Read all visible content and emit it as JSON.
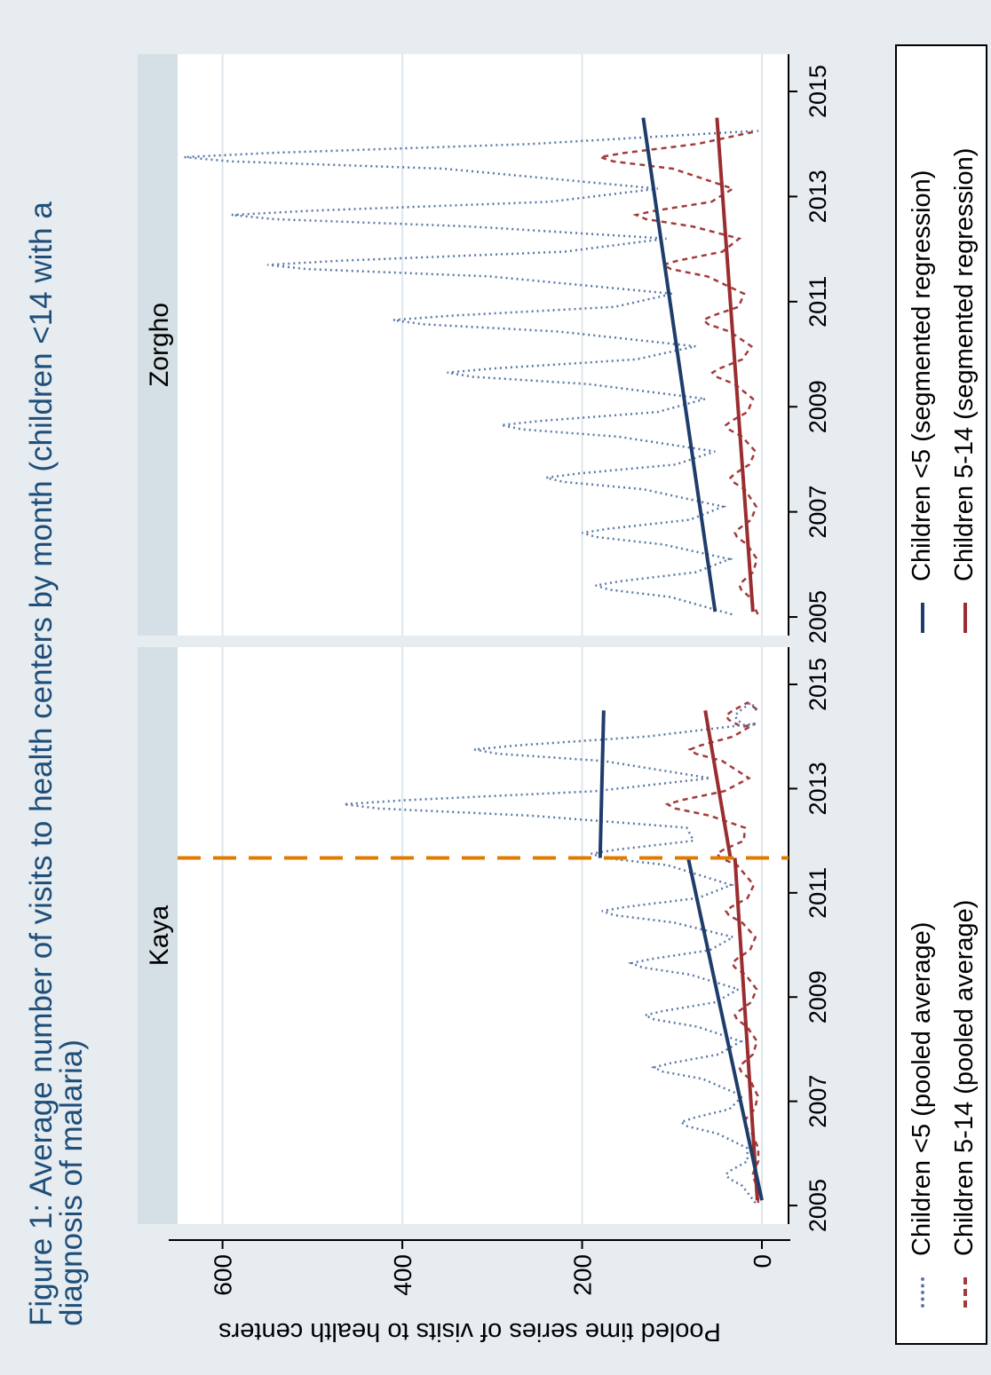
{
  "title": "Figure 1: Average number of visits to health centers by month (children <14 with a diagnosis of malaria)",
  "chart_data": {
    "type": "line",
    "ylabel": "Pooled time series of visits to health centers",
    "ylim": [
      0,
      600
    ],
    "yticks": [
      0,
      200,
      400,
      600
    ],
    "xlim": [
      2004.6,
      2015.4
    ],
    "xticks": [
      2005,
      2007,
      2009,
      2011,
      2013,
      2015
    ],
    "grid": true,
    "legend_position": "bottom",
    "legend": [
      {
        "label": "Children <5 (pooled average)",
        "style": "dotted",
        "color": "#5a78a8"
      },
      {
        "label": "Children 5-14 (pooled average)",
        "style": "dashed",
        "color": "#a23b3b"
      },
      {
        "label": "Children <5 (segmented regression)",
        "style": "solid",
        "color": "#1f3d6b"
      },
      {
        "label": "Children 5-14 (segmented regression)",
        "style": "solid",
        "color": "#9b2d30"
      }
    ],
    "panels": [
      {
        "name": "Kaya",
        "intervention_year": 2011.67,
        "intervention_color": "#e07b00",
        "series": {
          "under5_peaks": [
            {
              "x": 2005.6,
              "y": 40
            },
            {
              "x": 2006.6,
              "y": 90
            },
            {
              "x": 2007.65,
              "y": 120
            },
            {
              "x": 2008.65,
              "y": 130
            },
            {
              "x": 2009.65,
              "y": 145
            },
            {
              "x": 2010.65,
              "y": 178
            },
            {
              "x": 2011.75,
              "y": 190
            },
            {
              "x": 2012.7,
              "y": 465
            },
            {
              "x": 2013.75,
              "y": 320
            },
            {
              "x": 2014.4,
              "y": 30
            }
          ],
          "age5_14_peaks": [
            {
              "x": 2005.6,
              "y": 10
            },
            {
              "x": 2006.6,
              "y": 20
            },
            {
              "x": 2007.65,
              "y": 25
            },
            {
              "x": 2008.65,
              "y": 30
            },
            {
              "x": 2009.65,
              "y": 33
            },
            {
              "x": 2010.65,
              "y": 40
            },
            {
              "x": 2011.75,
              "y": 50
            },
            {
              "x": 2012.7,
              "y": 105
            },
            {
              "x": 2013.75,
              "y": 80
            },
            {
              "x": 2014.4,
              "y": 40
            }
          ],
          "under5_regression": [
            {
              "x": [
                2005.1,
                2011.67
              ],
              "y": [
                0,
                82
              ]
            },
            {
              "x": [
                2011.67,
                2014.5
              ],
              "y": [
                180,
                176
              ]
            }
          ],
          "age5_14_regression": [
            {
              "x": [
                2005.1,
                2011.67
              ],
              "y": [
                5,
                30
              ]
            },
            {
              "x": [
                2011.67,
                2014.5
              ],
              "y": [
                35,
                63
              ]
            }
          ]
        }
      },
      {
        "name": "Zorgho",
        "series": {
          "under5_peaks": [
            {
              "x": 2005.6,
              "y": 185
            },
            {
              "x": 2006.6,
              "y": 200
            },
            {
              "x": 2007.65,
              "y": 240
            },
            {
              "x": 2008.65,
              "y": 290
            },
            {
              "x": 2009.65,
              "y": 350
            },
            {
              "x": 2010.65,
              "y": 410
            },
            {
              "x": 2011.7,
              "y": 550
            },
            {
              "x": 2012.65,
              "y": 590
            },
            {
              "x": 2013.75,
              "y": 643
            }
          ],
          "age5_14_peaks": [
            {
              "x": 2005.6,
              "y": 25
            },
            {
              "x": 2006.6,
              "y": 30
            },
            {
              "x": 2007.65,
              "y": 35
            },
            {
              "x": 2008.65,
              "y": 40
            },
            {
              "x": 2009.65,
              "y": 55
            },
            {
              "x": 2010.65,
              "y": 65
            },
            {
              "x": 2011.7,
              "y": 110
            },
            {
              "x": 2012.65,
              "y": 140
            },
            {
              "x": 2013.75,
              "y": 180
            }
          ],
          "under5_regression": [
            {
              "x": [
                2005.1,
                2014.5
              ],
              "y": [
                52,
                132
              ]
            }
          ],
          "age5_14_regression": [
            {
              "x": [
                2005.1,
                2014.5
              ],
              "y": [
                10,
                50
              ]
            }
          ]
        }
      }
    ]
  }
}
